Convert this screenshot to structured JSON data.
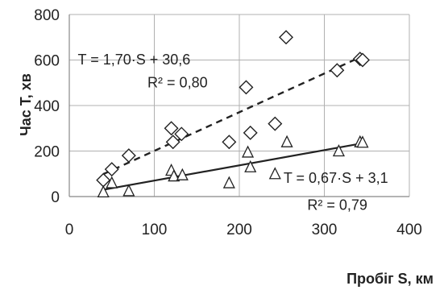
{
  "chart_data": {
    "type": "scatter",
    "xlabel": "Пробіг S, км",
    "ylabel": "Час T, хв",
    "xlim": [
      0,
      400
    ],
    "ylim": [
      0,
      800
    ],
    "xticks": [
      "0",
      "100",
      "200",
      "300",
      "400"
    ],
    "yticks": [
      "0",
      "200",
      "400",
      "600",
      "800"
    ],
    "grid": true,
    "series": [
      {
        "marker": "diamond",
        "points": [
          {
            "x": 40,
            "y": 72
          },
          {
            "x": 50,
            "y": 120
          },
          {
            "x": 70,
            "y": 180
          },
          {
            "x": 120,
            "y": 300
          },
          {
            "x": 122,
            "y": 240
          },
          {
            "x": 132,
            "y": 275
          },
          {
            "x": 188,
            "y": 240
          },
          {
            "x": 208,
            "y": 480
          },
          {
            "x": 213,
            "y": 280
          },
          {
            "x": 242,
            "y": 320
          },
          {
            "x": 255,
            "y": 700
          },
          {
            "x": 315,
            "y": 555
          },
          {
            "x": 342,
            "y": 605
          },
          {
            "x": 345,
            "y": 600
          }
        ],
        "trendline": {
          "style": "dashed",
          "slope": 1.7,
          "intercept": 30.6,
          "x_range": [
            40,
            345
          ]
        }
      },
      {
        "marker": "triangle",
        "points": [
          {
            "x": 40,
            "y": 20
          },
          {
            "x": 50,
            "y": 60
          },
          {
            "x": 70,
            "y": 25
          },
          {
            "x": 120,
            "y": 115
          },
          {
            "x": 123,
            "y": 90
          },
          {
            "x": 133,
            "y": 95
          },
          {
            "x": 188,
            "y": 60
          },
          {
            "x": 210,
            "y": 195
          },
          {
            "x": 213,
            "y": 130
          },
          {
            "x": 242,
            "y": 100
          },
          {
            "x": 256,
            "y": 240
          },
          {
            "x": 317,
            "y": 200
          },
          {
            "x": 342,
            "y": 240
          },
          {
            "x": 345,
            "y": 238
          }
        ],
        "trendline": {
          "style": "solid",
          "slope": 0.67,
          "intercept": 3.1,
          "x_range": [
            40,
            345
          ]
        }
      }
    ],
    "annotations": [
      {
        "text": "T = 1,70·S + 30,6",
        "anchor": [
          10,
          580
        ]
      },
      {
        "text": "R² = 0,80",
        "anchor": [
          92,
          480
        ]
      },
      {
        "text": "T = 0,67·S + 3,1",
        "anchor": [
          252,
          60
        ]
      },
      {
        "text": "R² = 0,79",
        "anchor": [
          280,
          -58
        ]
      }
    ]
  }
}
